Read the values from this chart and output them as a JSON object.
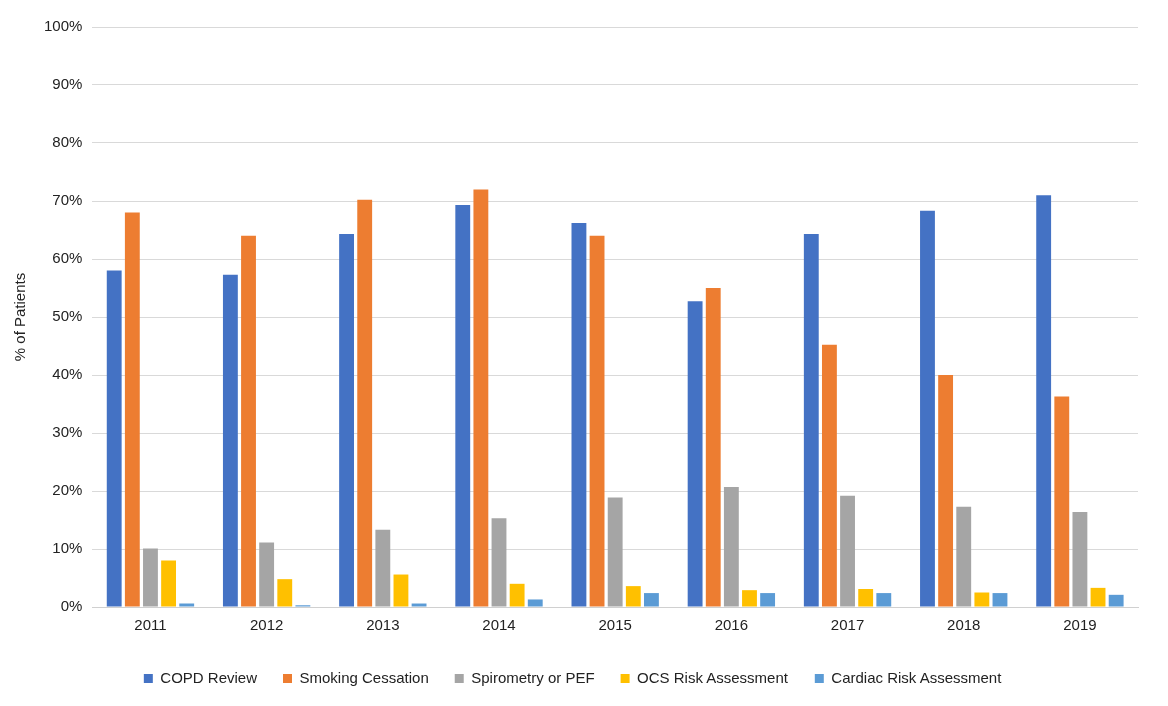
{
  "chart_data": {
    "type": "bar",
    "ylabel": "% of Patients",
    "categories": [
      "2011",
      "2012",
      "2013",
      "2014",
      "2015",
      "2016",
      "2017",
      "2018",
      "2019"
    ],
    "series": [
      {
        "name": "COPD Review",
        "color": "#4472c4",
        "values": [
          58,
          57.3,
          64.3,
          69.3,
          66.2,
          52.7,
          64.3,
          68.3,
          71
        ]
      },
      {
        "name": "Smoking Cessation",
        "color": "#ed7d31",
        "values": [
          68,
          64,
          70.2,
          72,
          64,
          55,
          45.2,
          40,
          36.3
        ]
      },
      {
        "name": "Spirometry or PEF",
        "color": "#a5a5a5",
        "values": [
          10.1,
          11.1,
          13.3,
          15.3,
          18.9,
          20.7,
          19.2,
          17.3,
          16.4
        ]
      },
      {
        "name": "OCS Risk Assessment",
        "color": "#ffc000",
        "values": [
          8,
          4.8,
          5.6,
          4,
          3.6,
          2.9,
          3.1,
          2.5,
          3.3
        ]
      },
      {
        "name": "Cardiac Risk Assessment",
        "color": "#5b9bd5",
        "values": [
          0.6,
          0.3,
          0.6,
          1.3,
          2.4,
          2.4,
          2.4,
          2.4,
          2.1
        ]
      }
    ],
    "ylim": [
      0,
      100
    ],
    "yticks": [
      {
        "value": 0,
        "label": "0%"
      },
      {
        "value": 10,
        "label": "10%"
      },
      {
        "value": 20,
        "label": "20%"
      },
      {
        "value": 30,
        "label": "30%"
      },
      {
        "value": 40,
        "label": "40%"
      },
      {
        "value": 50,
        "label": "50%"
      },
      {
        "value": 60,
        "label": "60%"
      },
      {
        "value": 70,
        "label": "70%"
      },
      {
        "value": 80,
        "label": "80%"
      },
      {
        "value": 90,
        "label": "90%"
      },
      {
        "value": 100,
        "label": "100%"
      }
    ],
    "grid": "y",
    "legend": "bottom"
  }
}
